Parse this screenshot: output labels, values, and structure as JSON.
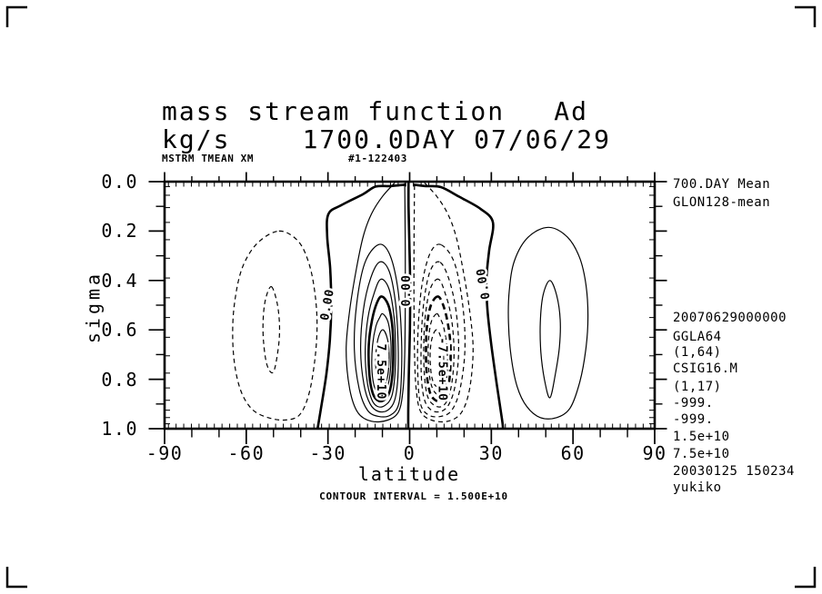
{
  "header": {
    "title_left": "mass stream function",
    "title_right": "Ad",
    "subtitle_left": "kg/s",
    "subtitle_right": "1700.0DAY 07/06/29",
    "meta_left": "MSTRM TMEAN XM",
    "meta_right": "#1-122403"
  },
  "side_notes": {
    "top": [
      "700.DAY Mean",
      "GLON128-mean"
    ],
    "bottom": [
      "20070629000000",
      "GGLA64",
      "(1,64)",
      "CSIG16.M",
      "(1,17)",
      "-999.",
      "-999.",
      "1.5e+10",
      "7.5e+10",
      "20030125 150234",
      "yukiko"
    ]
  },
  "footer": {
    "contour_interval": "CONTOUR INTERVAL = 1.500E+10"
  },
  "chart_data": {
    "type": "contour",
    "title": "mass stream function",
    "units": "kg/s",
    "xlabel": "latitude",
    "ylabel": "sigma",
    "xlim": [
      -90,
      90
    ],
    "ylim": [
      0.0,
      1.0
    ],
    "y_direction": "down",
    "grid": false,
    "contour_interval_value": 15000000000.0,
    "positive_style": "solid",
    "negative_style": "dashed",
    "x_major_ticks": [
      -90,
      -60,
      -30,
      0,
      30,
      60,
      90
    ],
    "x_minor_ticks": [
      -80,
      -70,
      -50,
      -40,
      -20,
      -10,
      10,
      20,
      40,
      50,
      70,
      80
    ],
    "x_grid_tick_count": 64,
    "y_major_ticks": [
      0.0,
      0.2,
      0.4,
      0.6,
      0.8,
      1.0
    ],
    "y_minor_ticks": [
      0.1,
      0.3,
      0.5,
      0.7,
      0.9
    ],
    "sigma_levels": [
      0.02,
      0.055,
      0.105,
      0.165,
      0.235,
      0.31,
      0.39,
      0.47,
      0.55,
      0.63,
      0.705,
      0.775,
      0.835,
      0.885,
      0.925,
      0.955,
      0.98
    ],
    "zero_lines": [
      {
        "name": "zero-south",
        "points": [
          [
            -1.5,
            0.012
          ],
          [
            -7,
            0.018
          ],
          [
            -12.5,
            0.02
          ],
          [
            -17,
            0.05
          ],
          [
            -25,
            0.095
          ],
          [
            -29.8,
            0.13
          ],
          [
            -30.3,
            0.22
          ],
          [
            -29.2,
            0.35
          ],
          [
            -28.8,
            0.5
          ],
          [
            -29.3,
            0.64
          ],
          [
            -30.6,
            0.78
          ],
          [
            -32.6,
            0.92
          ],
          [
            -33.8,
            1.0
          ]
        ]
      },
      {
        "name": "zero-equator",
        "points": [
          [
            -0.4,
            0.0
          ],
          [
            -0.4,
            0.1
          ],
          [
            -0.1,
            0.25
          ],
          [
            0.2,
            0.42
          ],
          [
            0.1,
            0.6
          ],
          [
            -0.3,
            0.78
          ],
          [
            -0.5,
            0.92
          ],
          [
            -0.5,
            1.0
          ]
        ]
      },
      {
        "name": "zero-north",
        "points": [
          [
            1.2,
            0.012
          ],
          [
            6,
            0.018
          ],
          [
            11.5,
            0.022
          ],
          [
            18,
            0.06
          ],
          [
            26,
            0.11
          ],
          [
            30.6,
            0.165
          ],
          [
            29.2,
            0.28
          ],
          [
            28.2,
            0.4
          ],
          [
            28.6,
            0.52
          ],
          [
            30,
            0.66
          ],
          [
            32,
            0.82
          ],
          [
            33.9,
            0.96
          ],
          [
            34.3,
            1.0
          ]
        ]
      }
    ],
    "cells": [
      {
        "name": "ferrel-south",
        "sign": "negative",
        "style": "dashed",
        "rings": [
          [
            [
              -48,
              0.2
            ],
            [
              -41,
              0.24
            ],
            [
              -37,
              0.33
            ],
            [
              -34.8,
              0.45
            ],
            [
              -34,
              0.58
            ],
            [
              -34.8,
              0.72
            ],
            [
              -37,
              0.86
            ],
            [
              -40.5,
              0.945
            ],
            [
              -46,
              0.965
            ],
            [
              -52,
              0.955
            ],
            [
              -57.5,
              0.925
            ],
            [
              -61.5,
              0.86
            ],
            [
              -64,
              0.76
            ],
            [
              -65,
              0.63
            ],
            [
              -64.3,
              0.49
            ],
            [
              -61.5,
              0.35
            ],
            [
              -56,
              0.25
            ]
          ],
          [
            [
              -50.8,
              0.425
            ],
            [
              -48.7,
              0.49
            ],
            [
              -47.8,
              0.58
            ],
            [
              -48.2,
              0.67
            ],
            [
              -50,
              0.77
            ],
            [
              -52.3,
              0.745
            ],
            [
              -53.6,
              0.655
            ],
            [
              -53.8,
              0.56
            ],
            [
              -52.9,
              0.475
            ]
          ]
        ]
      },
      {
        "name": "hadley-south",
        "sign": "positive",
        "style": "solid",
        "bold_ring_index": 4,
        "rings": [
          [
            [
              -5.5,
              0.005
            ],
            [
              -10,
              0.06
            ],
            [
              -14,
              0.13
            ],
            [
              -17,
              0.22
            ],
            [
              -19.5,
              0.35
            ],
            [
              -22,
              0.52
            ],
            [
              -23.3,
              0.68
            ],
            [
              -22,
              0.84
            ],
            [
              -19,
              0.935
            ],
            [
              -14,
              0.97
            ],
            [
              -8,
              0.965
            ],
            [
              -4,
              0.93
            ],
            [
              -2.4,
              0.84
            ],
            [
              -1.8,
              0.7
            ],
            [
              -1.6,
              0.5
            ],
            [
              -1.6,
              0.3
            ],
            [
              -1.7,
              0.12
            ],
            [
              -1.8,
              0.005
            ]
          ],
          [
            [
              -11.5,
              0.255
            ],
            [
              -7.5,
              0.29
            ],
            [
              -4.5,
              0.42
            ],
            [
              -3.1,
              0.6
            ],
            [
              -3,
              0.78
            ],
            [
              -4,
              0.9
            ],
            [
              -7,
              0.945
            ],
            [
              -11.5,
              0.95
            ],
            [
              -15.5,
              0.925
            ],
            [
              -18.5,
              0.84
            ],
            [
              -20.3,
              0.68
            ],
            [
              -19.5,
              0.5
            ],
            [
              -16.5,
              0.33
            ]
          ],
          [
            [
              -11,
              0.325
            ],
            [
              -7.6,
              0.36
            ],
            [
              -5.3,
              0.48
            ],
            [
              -4.3,
              0.63
            ],
            [
              -4.3,
              0.79
            ],
            [
              -5.5,
              0.885
            ],
            [
              -8,
              0.925
            ],
            [
              -11.5,
              0.93
            ],
            [
              -14.5,
              0.9
            ],
            [
              -16.8,
              0.82
            ],
            [
              -18,
              0.68
            ],
            [
              -17,
              0.52
            ],
            [
              -14.3,
              0.39
            ]
          ],
          [
            [
              -10.6,
              0.395
            ],
            [
              -7.7,
              0.43
            ],
            [
              -5.9,
              0.53
            ],
            [
              -5.2,
              0.65
            ],
            [
              -5.4,
              0.78
            ],
            [
              -6.6,
              0.87
            ],
            [
              -9,
              0.905
            ],
            [
              -11.8,
              0.91
            ],
            [
              -14,
              0.88
            ],
            [
              -15.7,
              0.8
            ],
            [
              -16.3,
              0.68
            ],
            [
              -15.3,
              0.55
            ],
            [
              -13,
              0.45
            ]
          ],
          [
            [
              -10.2,
              0.465
            ],
            [
              -7.8,
              0.5
            ],
            [
              -6.4,
              0.58
            ],
            [
              -6,
              0.68
            ],
            [
              -6.3,
              0.78
            ],
            [
              -7.5,
              0.855
            ],
            [
              -9.5,
              0.885
            ],
            [
              -11.8,
              0.885
            ],
            [
              -13.6,
              0.855
            ],
            [
              -14.8,
              0.78
            ],
            [
              -15,
              0.66
            ],
            [
              -13.8,
              0.56
            ],
            [
              -12,
              0.49
            ]
          ],
          [
            [
              -9.9,
              0.535
            ],
            [
              -8,
              0.565
            ],
            [
              -7,
              0.63
            ],
            [
              -6.8,
              0.7
            ],
            [
              -7.2,
              0.78
            ],
            [
              -8.3,
              0.835
            ],
            [
              -10,
              0.86
            ],
            [
              -11.8,
              0.855
            ],
            [
              -13.2,
              0.82
            ],
            [
              -13.9,
              0.75
            ],
            [
              -13.6,
              0.66
            ],
            [
              -12.4,
              0.585
            ],
            [
              -11,
              0.55
            ]
          ],
          [
            [
              -9.7,
              0.6
            ],
            [
              -8.3,
              0.63
            ],
            [
              -7.6,
              0.68
            ],
            [
              -7.6,
              0.74
            ],
            [
              -8.2,
              0.795
            ],
            [
              -9.4,
              0.825
            ],
            [
              -10.8,
              0.825
            ],
            [
              -12,
              0.79
            ],
            [
              -12.5,
              0.73
            ],
            [
              -12.1,
              0.665
            ],
            [
              -11,
              0.615
            ]
          ]
        ]
      },
      {
        "name": "hadley-north",
        "sign": "negative",
        "style": "dashed",
        "mirror_of": "hadley-south",
        "bold_ring_index": 4
      },
      {
        "name": "ferrel-north",
        "sign": "positive",
        "style": "solid",
        "rings": [
          [
            [
              51,
              0.185
            ],
            [
              58,
              0.225
            ],
            [
              62.5,
              0.31
            ],
            [
              64.8,
              0.42
            ],
            [
              65.5,
              0.55
            ],
            [
              64.7,
              0.68
            ],
            [
              62.5,
              0.81
            ],
            [
              59,
              0.915
            ],
            [
              54,
              0.955
            ],
            [
              48,
              0.955
            ],
            [
              43,
              0.91
            ],
            [
              39.5,
              0.83
            ],
            [
              37.3,
              0.71
            ],
            [
              36.3,
              0.57
            ],
            [
              36.6,
              0.44
            ],
            [
              38.5,
              0.32
            ],
            [
              43.5,
              0.225
            ]
          ],
          [
            [
              51.5,
              0.4
            ],
            [
              54,
              0.46
            ],
            [
              55.3,
              0.56
            ],
            [
              55,
              0.67
            ],
            [
              53.5,
              0.78
            ],
            [
              51.5,
              0.875
            ],
            [
              49.5,
              0.8
            ],
            [
              48.2,
              0.69
            ],
            [
              48,
              0.57
            ],
            [
              49,
              0.46
            ]
          ]
        ]
      }
    ],
    "contour_labels": [
      {
        "text": "0.00",
        "lat": -28.9,
        "sigma": 0.5,
        "rot": -80,
        "bold": true
      },
      {
        "text": "0.00",
        "lat": 0.15,
        "sigma": 0.44,
        "rot": -90,
        "bold": true
      },
      {
        "text": "0.00",
        "lat": 28.4,
        "sigma": 0.41,
        "rot": -100,
        "bold": true
      },
      {
        "text": "7.5e+10",
        "lat": -11.9,
        "sigma": 0.77,
        "rot": 90,
        "bold": true
      },
      {
        "text": "-7.5e+10",
        "lat": 10.7,
        "sigma": 0.76,
        "rot": 90,
        "bold": true
      }
    ]
  }
}
